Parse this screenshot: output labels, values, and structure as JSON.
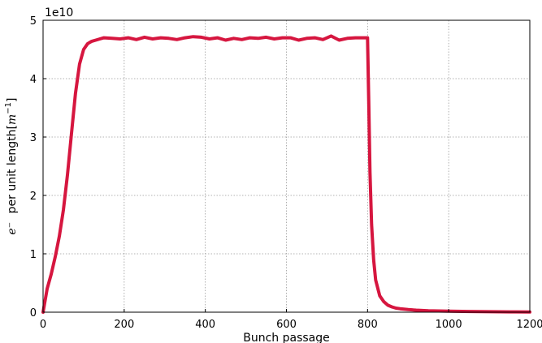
{
  "chart_data": {
    "type": "line",
    "title": "",
    "xlabel": "Bunch passage",
    "ylabel_prefix": "e⁻",
    "ylabel_main": "per unit length[",
    "ylabel_unit": "m",
    "ylabel_exp": "−1",
    "ylabel_close": "]",
    "y_scale_label": "1e10",
    "y_scale_factor": 10000000000,
    "xlim": [
      0,
      1200
    ],
    "ylim": [
      0,
      5
    ],
    "x_ticks": [
      0,
      200,
      400,
      600,
      800,
      1000,
      1200
    ],
    "y_ticks": [
      0,
      1,
      2,
      3,
      4,
      5
    ],
    "grid": true,
    "series": [
      {
        "color": "#d6163f",
        "x": [
          0,
          5,
          10,
          20,
          30,
          40,
          50,
          60,
          70,
          80,
          90,
          100,
          110,
          120,
          130,
          140,
          150,
          170,
          190,
          210,
          230,
          250,
          270,
          290,
          310,
          330,
          350,
          370,
          390,
          410,
          430,
          450,
          470,
          490,
          510,
          530,
          550,
          570,
          590,
          610,
          630,
          650,
          670,
          690,
          710,
          730,
          750,
          770,
          790,
          799,
          800,
          803,
          806,
          810,
          815,
          820,
          830,
          840,
          850,
          860,
          870,
          880,
          900,
          920,
          950,
          1000,
          1050,
          1100,
          1150,
          1200
        ],
        "y": [
          0.0,
          0.2,
          0.4,
          0.65,
          0.95,
          1.3,
          1.75,
          2.35,
          3.05,
          3.75,
          4.25,
          4.5,
          4.6,
          4.64,
          4.66,
          4.68,
          4.7,
          4.69,
          4.68,
          4.7,
          4.67,
          4.71,
          4.68,
          4.7,
          4.69,
          4.67,
          4.7,
          4.72,
          4.71,
          4.68,
          4.7,
          4.66,
          4.69,
          4.67,
          4.7,
          4.69,
          4.71,
          4.68,
          4.7,
          4.7,
          4.66,
          4.69,
          4.7,
          4.67,
          4.73,
          4.66,
          4.69,
          4.7,
          4.7,
          4.7,
          4.7,
          3.6,
          2.4,
          1.5,
          0.9,
          0.55,
          0.28,
          0.18,
          0.12,
          0.09,
          0.07,
          0.06,
          0.045,
          0.035,
          0.025,
          0.018,
          0.012,
          0.008,
          0.005,
          0.003
        ]
      }
    ]
  }
}
